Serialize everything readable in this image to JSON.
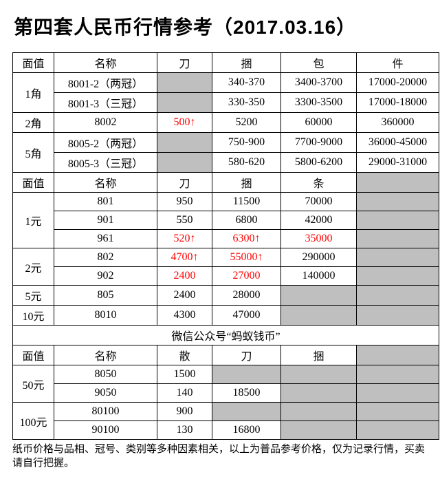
{
  "title": "第四套人民币行情参考（2017.03.16）",
  "colors": {
    "red": "#ff0000",
    "shade": "#bfbfbf",
    "border": "#000000",
    "bg": "#ffffff"
  },
  "section1": {
    "headers": [
      "面值",
      "名称",
      "刀",
      "捆",
      "包",
      "件"
    ],
    "rows": [
      {
        "face": "1角",
        "name": "8001-2（两冠）",
        "dao": "",
        "kun": "340-370",
        "bao": "3400-3700",
        "jian": "17000-20000",
        "dao_shade": true
      },
      {
        "face": "",
        "name": "8001-3（三冠）",
        "dao": "",
        "kun": "330-350",
        "bao": "3300-3500",
        "jian": "17000-18000",
        "dao_shade": true
      },
      {
        "face": "2角",
        "name": "8002",
        "dao": "500↑",
        "dao_red": true,
        "kun": "5200",
        "bao": "60000",
        "jian": "360000"
      },
      {
        "face": "5角",
        "name": "8005-2（两冠）",
        "dao": "",
        "kun": "750-900",
        "bao": "7700-9000",
        "jian": "36000-45000",
        "dao_shade": true
      },
      {
        "face": "",
        "name": "8005-3（三冠）",
        "dao": "",
        "kun": "580-620",
        "bao": "5800-6200",
        "jian": "29000-31000",
        "dao_shade": true
      }
    ]
  },
  "section2": {
    "headers": [
      "面值",
      "名称",
      "刀",
      "捆",
      "条"
    ],
    "rows": [
      {
        "face": "1元",
        "name": "801",
        "dao": "950",
        "kun": "11500",
        "tiao": "70000"
      },
      {
        "face": "",
        "name": "901",
        "dao": "550",
        "kun": "6800",
        "tiao": "42000"
      },
      {
        "face": "",
        "name": "961",
        "dao": "520↑",
        "dao_red": true,
        "kun": "6300↑",
        "kun_red": true,
        "tiao": "35000",
        "tiao_red": true
      },
      {
        "face": "2元",
        "name": "802",
        "dao": "4700↑",
        "dao_red": true,
        "kun": "55000↑",
        "kun_red": true,
        "tiao": "290000"
      },
      {
        "face": "",
        "name": "902",
        "dao": "2400",
        "dao_red": true,
        "kun": "27000",
        "kun_red": true,
        "tiao": "140000"
      },
      {
        "face": "5元",
        "name": "805",
        "dao": "2400",
        "kun": "28000",
        "tiao": ""
      },
      {
        "face": "10元",
        "name": "8010",
        "dao": "4300",
        "kun": "47000",
        "tiao": ""
      }
    ]
  },
  "banner": "微信公众号“蚂蚁钱币”",
  "section3": {
    "headers": [
      "面值",
      "名称",
      "散",
      "刀",
      "捆"
    ],
    "rows": [
      {
        "face": "50元",
        "name": "8050",
        "san": "1500",
        "dao": "",
        "kun": ""
      },
      {
        "face": "",
        "name": "9050",
        "san": "140",
        "dao": "18500",
        "kun": ""
      },
      {
        "face": "100元",
        "name": "80100",
        "san": "900",
        "dao": "",
        "kun": ""
      },
      {
        "face": "",
        "name": "90100",
        "san": "130",
        "dao": "16800",
        "kun": ""
      }
    ]
  },
  "footnote": "纸币价格与品相、冠号、类别等多种因素相关，以上为普品参考价格，仅为记录行情，买卖请自行把握。"
}
